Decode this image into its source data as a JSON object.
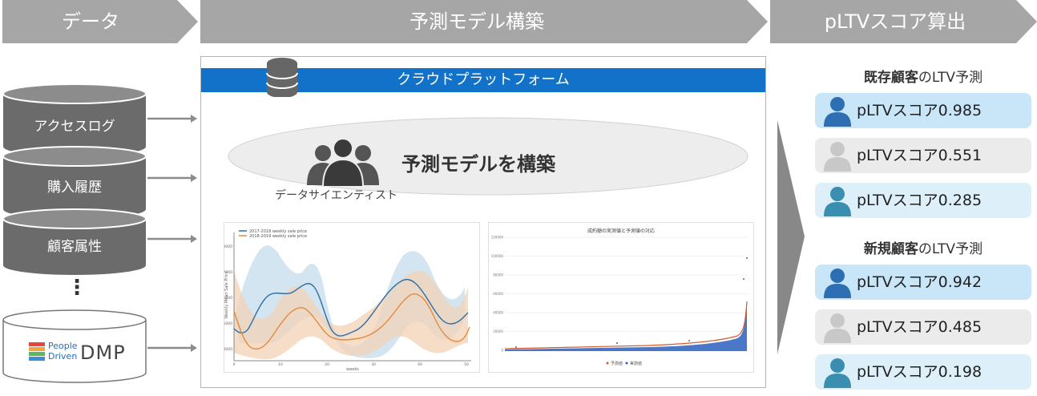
{
  "headers": {
    "data": "データ",
    "model": "予測モデル構築",
    "score": "pLTVスコア算出"
  },
  "sources": {
    "items": [
      "アクセスログ",
      "購入履歴",
      "顧客属性"
    ],
    "ellipsis": "⋮",
    "dmp_line1": "People",
    "dmp_line2": "Driven",
    "dmp_brand": "DMP"
  },
  "platform": {
    "title": "クラウドプラットフォーム",
    "model_label": "予測モデルを構築",
    "scientist_label": "データサイエンティスト"
  },
  "chart_data": [
    {
      "type": "line",
      "title": "",
      "series": [
        {
          "name": "2017-2018 weekly sale price",
          "color": "#2b6fa8"
        },
        {
          "name": "2018-2019 weekly sale price",
          "color": "#e68a3c"
        }
      ],
      "xlabel": "weeks",
      "ylabel": "Weekly Mean Sale Price",
      "yticks": [
        "8000",
        "7000",
        "6000",
        "5000",
        "4000"
      ],
      "xticks": [
        "0",
        "10",
        "20",
        "30",
        "40",
        "50"
      ]
    },
    {
      "type": "scatter",
      "title": "成約額の実測値と予測値の対応",
      "legend": [
        "予測値",
        "実測値"
      ],
      "yticks": [
        "120000",
        "100000",
        "80000",
        "60000",
        "40000",
        "20000",
        "0"
      ]
    }
  ],
  "existing": {
    "title_bold": "既存顧客",
    "title_rest": "のLTV予測",
    "scores": [
      {
        "label": "pLTVスコア0.985",
        "bg": "#c9e5f8",
        "icon": "#2e6fb3"
      },
      {
        "label": "pLTVスコア0.551",
        "bg": "#ebebeb",
        "icon": "#c8c8c8"
      },
      {
        "label": "pLTVスコア0.285",
        "bg": "#ddeff8",
        "icon": "#3a8fb0"
      }
    ]
  },
  "new": {
    "title_bold": "新規顧客",
    "title_rest": "のLTV予測",
    "scores": [
      {
        "label": "pLTVスコア0.942",
        "bg": "#c9e5f8",
        "icon": "#2e6fb3"
      },
      {
        "label": "pLTVスコア0.485",
        "bg": "#ebebeb",
        "icon": "#c8c8c8"
      },
      {
        "label": "pLTVスコア0.198",
        "bg": "#ddeff8",
        "icon": "#3a8fb0"
      }
    ]
  }
}
